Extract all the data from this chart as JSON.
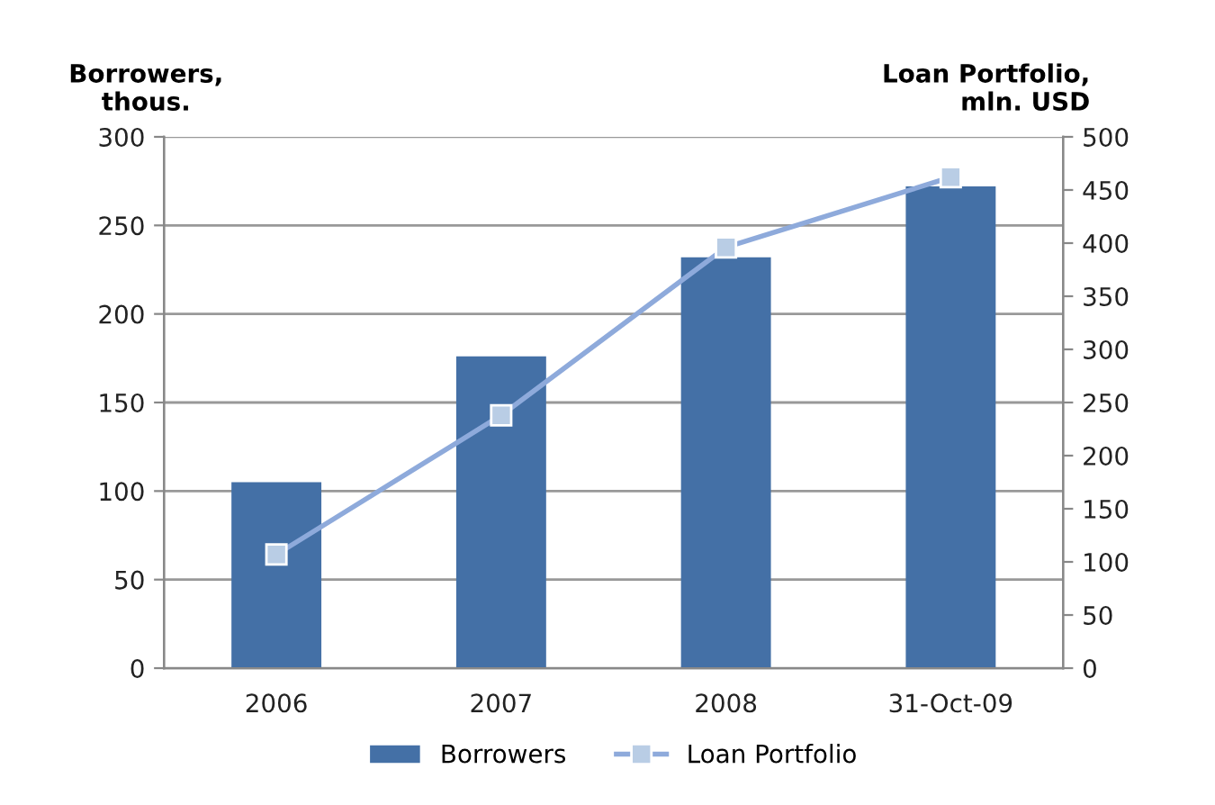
{
  "chart_data": {
    "type": "bar",
    "ylabel": "Borrowers,\nthous.",
    "y2label": "Loan Portfolio,\nmln. USD",
    "categories": [
      "2006",
      "2007",
      "2008",
      "31-Oct-09"
    ],
    "series": [
      {
        "name": "Borrowers",
        "color": "#4470a6",
        "values": [
          105,
          176,
          232,
          272
        ]
      },
      {
        "name": "Loan Portfolio",
        "type": "line",
        "axis": "y2",
        "color": "#8eaadb",
        "marker": "square",
        "values": [
          107,
          238,
          396,
          462
        ]
      }
    ],
    "ylim": [
      0,
      300
    ],
    "yticks": [
      0,
      50,
      100,
      150,
      200,
      250,
      300
    ],
    "y2lim": [
      0,
      500
    ],
    "y2ticks": [
      0,
      50,
      100,
      150,
      200,
      250,
      300,
      350,
      400,
      450,
      500
    ],
    "grid": "y",
    "legend": "bottom"
  }
}
